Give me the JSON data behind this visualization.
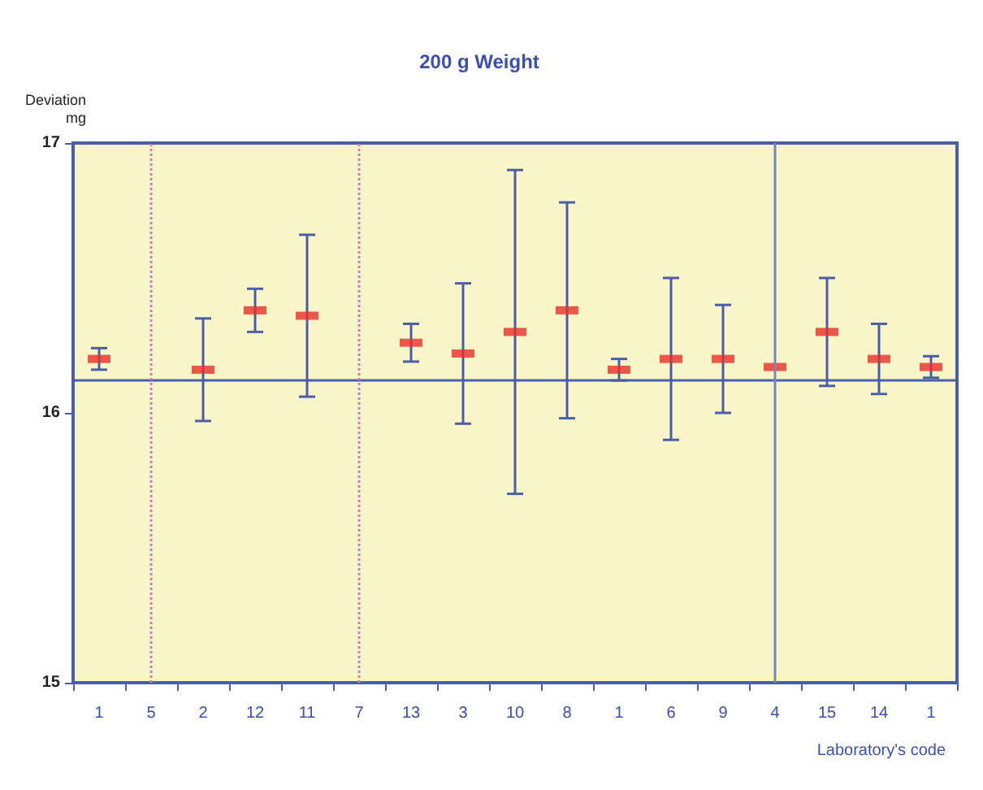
{
  "chart_data": {
    "type": "scatter",
    "title": "200 g Weight",
    "ylabel": "Deviation\nmg",
    "xlabel": "Laboratory's code",
    "categories": [
      "1",
      "5",
      "2",
      "12",
      "11",
      "7",
      "13",
      "3",
      "10",
      "8",
      "1",
      "6",
      "9",
      "4",
      "15",
      "14",
      "1"
    ],
    "series": [
      {
        "color": "#e8302a",
        "values": [
          16.2,
          null,
          16.16,
          16.38,
          16.36,
          null,
          16.26,
          16.22,
          16.3,
          16.38,
          16.16,
          16.2,
          16.2,
          16.17,
          16.3,
          16.2,
          16.17
        ],
        "errors": [
          0.04,
          null,
          0.19,
          0.08,
          0.3,
          null,
          0.07,
          0.26,
          0.6,
          0.4,
          0.04,
          0.3,
          0.2,
          null,
          0.2,
          0.13,
          0.04
        ]
      }
    ],
    "ylim": [
      15,
      17
    ],
    "yticks": [
      15,
      16,
      17
    ],
    "grid": false,
    "ref_lines": [
      {
        "axis": "y",
        "value": 16.12,
        "color": "#4a5fa8",
        "line_style": "solid"
      },
      {
        "axis": "x",
        "value": "5",
        "color": "#c080c8",
        "line_style": "dotted"
      },
      {
        "axis": "x",
        "value": "7",
        "color": "#c080c8",
        "line_style": "dotted"
      },
      {
        "axis": "x",
        "value": "4",
        "color": "#7a86b8",
        "line_style": "solid"
      }
    ]
  }
}
